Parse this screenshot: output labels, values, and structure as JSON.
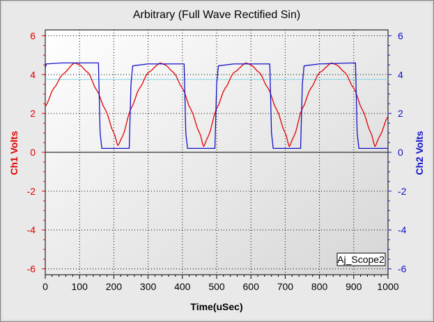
{
  "chart_data": {
    "type": "line",
    "title": "Arbitrary (Full Wave Rectified Sin)",
    "xlabel": "Time(uSec)",
    "ylabel_left": "Ch1 Volts",
    "ylabel_right": "Ch2 Volts",
    "xlim": [
      0,
      1000
    ],
    "ylim": [
      -6.3,
      6.3
    ],
    "xticks": [
      "0",
      "100",
      "200",
      "300",
      "400",
      "500",
      "600",
      "700",
      "800",
      "900",
      "1000"
    ],
    "yticks_left": [
      "6",
      "4",
      "2",
      "0",
      "-2",
      "-4",
      "-6"
    ],
    "yticks_right": [
      "6",
      "4",
      "2",
      "0",
      "-2",
      "-4",
      "-6"
    ],
    "grid": true,
    "legend_box": "Aj_Scope2",
    "reference_line_y": 3.75,
    "series": [
      {
        "name": "Ch1",
        "color": "#e00000",
        "axis": "left",
        "x": [
          0,
          25,
          50,
          85,
          100,
          125,
          150,
          175,
          200,
          212,
          225,
          250,
          275,
          300,
          335,
          350,
          375,
          400,
          425,
          450,
          462,
          475,
          500,
          525,
          550,
          585,
          600,
          625,
          650,
          675,
          700,
          712,
          725,
          750,
          775,
          800,
          835,
          850,
          875,
          900,
          925,
          950,
          962,
          975,
          1000
        ],
        "values": [
          2.35,
          3.3,
          4.0,
          4.6,
          4.5,
          4.1,
          3.2,
          2.2,
          1.0,
          0.35,
          0.8,
          2.25,
          3.3,
          4.1,
          4.6,
          4.5,
          4.1,
          3.3,
          2.2,
          1.0,
          0.3,
          0.8,
          2.25,
          3.3,
          4.1,
          4.6,
          4.5,
          4.1,
          3.3,
          2.2,
          1.0,
          0.3,
          0.8,
          2.25,
          3.3,
          4.1,
          4.6,
          4.5,
          4.1,
          3.3,
          2.2,
          1.0,
          0.3,
          0.8,
          1.85
        ]
      },
      {
        "name": "Ch2",
        "color": "#1010c8",
        "axis": "right",
        "x": [
          0,
          3,
          50,
          100,
          155,
          160,
          165,
          200,
          245,
          250,
          255,
          300,
          405,
          410,
          415,
          460,
          495,
          500,
          505,
          550,
          655,
          660,
          665,
          710,
          745,
          750,
          755,
          800,
          905,
          910,
          915,
          960,
          1000
        ],
        "values": [
          4.35,
          4.55,
          4.6,
          4.6,
          4.6,
          1.0,
          0.2,
          0.2,
          0.2,
          3.5,
          4.45,
          4.55,
          4.55,
          1.0,
          0.2,
          0.2,
          0.2,
          3.5,
          4.45,
          4.55,
          4.55,
          1.0,
          0.2,
          0.2,
          0.2,
          3.5,
          4.45,
          4.55,
          4.6,
          1.0,
          0.2,
          0.2,
          0.2
        ]
      }
    ]
  }
}
